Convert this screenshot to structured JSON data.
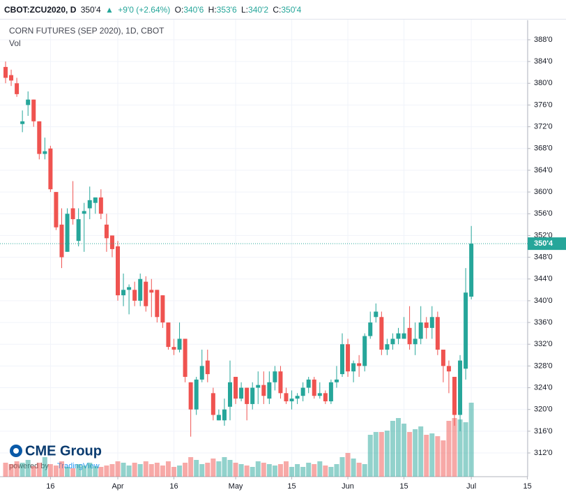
{
  "header": {
    "symbol": "CBOT:ZCU2020, D",
    "last": "350'4",
    "arrow": "▲",
    "change": "+9'0 (+2.64%)",
    "open_label": "O:",
    "open": "340'6",
    "high_label": "H:",
    "high": "353'6",
    "low_label": "L:",
    "low": "340'2",
    "close_label": "C:",
    "close": "350'4"
  },
  "logo": {
    "brand": "CME Group",
    "powered": "powered by",
    "platform": "TradingView"
  },
  "chart_data": {
    "type": "candlestick",
    "title": "CORN FUTURES (SEP 2020), 1D, CBOT",
    "volume_label": "Vol",
    "up_color": "#26a69a",
    "down_color": "#ef5350",
    "grid": true,
    "categories": [
      null,
      null,
      null,
      null,
      null,
      null,
      null,
      null,
      "16",
      null,
      null,
      null,
      null,
      null,
      null,
      null,
      null,
      null,
      null,
      null,
      "Apr",
      null,
      null,
      null,
      null,
      null,
      null,
      null,
      null,
      null,
      "16",
      null,
      null,
      null,
      null,
      null,
      null,
      null,
      null,
      null,
      null,
      "May",
      null,
      null,
      null,
      null,
      null,
      null,
      null,
      null,
      null,
      "15",
      null,
      null,
      null,
      null,
      null,
      null,
      null,
      null,
      null,
      "Jun",
      null,
      null,
      null,
      null,
      null,
      null,
      null,
      null,
      null,
      "15",
      null,
      null,
      null,
      null,
      null,
      null,
      null,
      null,
      null,
      null,
      null,
      "Jul",
      null,
      null,
      null,
      null,
      null,
      null,
      null,
      null,
      null,
      "15"
    ],
    "open": [
      383,
      381.5,
      380,
      372.5,
      376,
      377,
      373,
      367,
      368,
      360,
      354,
      349,
      357,
      351,
      356,
      357,
      358,
      359,
      354,
      352,
      350,
      341,
      342,
      342,
      340,
      343.5,
      342,
      342,
      341,
      336,
      331.5,
      331,
      333,
      325,
      320,
      325.5,
      329,
      323,
      318,
      318,
      320.5,
      326,
      322,
      324,
      321,
      324,
      324.5,
      322,
      325,
      327,
      323,
      321.5,
      322,
      322.5,
      324,
      325.5,
      322.5,
      323,
      321.5,
      325,
      326.5,
      332,
      327,
      328.5,
      328,
      333.5,
      337,
      337,
      331,
      332,
      333,
      333,
      335,
      332,
      333,
      336,
      335,
      337,
      331,
      328,
      326,
      319,
      327.5,
      340.75,
      null,
      null,
      null,
      null,
      null,
      null,
      null,
      null,
      null,
      null
    ],
    "high": [
      384,
      382.5,
      381,
      375,
      378.5,
      377,
      373,
      370,
      368.5,
      360,
      357,
      357,
      362,
      357,
      358,
      361,
      359,
      360.5,
      356,
      352,
      351,
      345,
      343,
      343.5,
      345,
      344.5,
      344,
      342,
      341,
      336,
      333,
      336,
      333,
      325,
      326,
      331,
      331,
      324,
      320,
      322,
      329,
      326,
      325,
      324,
      325,
      327,
      327,
      327,
      328,
      328,
      324,
      323.5,
      323,
      325,
      326,
      326,
      325,
      323.5,
      325.5,
      328,
      334,
      333,
      329,
      330,
      334,
      338,
      339.5,
      338,
      333,
      334,
      335,
      337,
      339,
      336,
      339,
      337,
      339,
      338,
      331,
      329,
      326,
      330,
      346,
      353.75,
      null,
      null,
      null,
      null,
      null,
      null,
      null,
      null,
      null,
      null
    ],
    "low": [
      380,
      379.5,
      377.5,
      371,
      374,
      372,
      366,
      366,
      360,
      353,
      346,
      349,
      354,
      350,
      349,
      355,
      356,
      355,
      349,
      348,
      340,
      339,
      337.5,
      339,
      339,
      338,
      337,
      336,
      335,
      331,
      330,
      330.5,
      325,
      315,
      319,
      325,
      325,
      318,
      318,
      317,
      318,
      321,
      321.5,
      318,
      320,
      321,
      321,
      321,
      323.5,
      322,
      321,
      320,
      321,
      321.5,
      323,
      322,
      322,
      321,
      321,
      324,
      326,
      326,
      325,
      326,
      327,
      333,
      336,
      330,
      330,
      331,
      332,
      333,
      331,
      330,
      332,
      333,
      333,
      330,
      325,
      323,
      317,
      316,
      325.5,
      340.25,
      null,
      null,
      null,
      null,
      null,
      null,
      null,
      null,
      null,
      null
    ],
    "close": [
      381,
      380.5,
      378,
      373,
      377,
      373,
      367,
      367.5,
      360.5,
      353.5,
      348,
      356,
      355,
      355,
      356.5,
      358.5,
      359,
      356,
      351.5,
      349.5,
      341,
      342,
      342.5,
      340,
      344,
      339,
      341.5,
      337,
      336,
      331.5,
      331,
      333,
      326,
      320,
      325.5,
      328,
      326.5,
      319,
      319,
      320,
      325,
      322,
      324,
      321,
      324,
      324.5,
      322.5,
      325,
      327,
      323,
      321.5,
      322,
      322.5,
      324,
      325.5,
      322.5,
      323,
      321.5,
      325,
      325.5,
      332,
      327,
      328.5,
      328,
      333.5,
      336,
      338,
      331,
      332,
      333,
      334,
      334,
      332,
      333,
      336,
      335,
      337,
      331,
      328,
      327,
      319,
      329,
      341.5,
      350.5,
      null,
      null,
      null,
      null,
      null,
      null,
      null,
      null,
      null,
      null
    ],
    "volume": [
      20,
      18,
      22,
      20,
      24,
      15,
      20,
      28,
      18,
      16,
      22,
      14,
      12,
      18,
      16,
      20,
      15,
      14,
      16,
      18,
      22,
      20,
      16,
      20,
      18,
      22,
      18,
      20,
      16,
      22,
      14,
      16,
      20,
      28,
      24,
      18,
      20,
      26,
      22,
      28,
      24,
      20,
      18,
      16,
      14,
      22,
      20,
      18,
      16,
      18,
      22,
      14,
      18,
      14,
      20,
      18,
      22,
      16,
      14,
      18,
      28,
      34,
      26,
      20,
      18,
      60,
      64,
      64,
      66,
      80,
      84,
      76,
      64,
      68,
      72,
      60,
      62,
      58,
      52,
      80,
      84,
      82,
      78,
      106,
      null,
      null,
      null,
      null,
      null,
      null,
      null,
      null,
      null,
      null
    ],
    "ylim": [
      307.64,
      391.72
    ],
    "yticks": [
      {
        "value": 312,
        "label": "312'0"
      },
      {
        "value": 316,
        "label": "316'0"
      },
      {
        "value": 320,
        "label": "320'0"
      },
      {
        "value": 324,
        "label": "324'0"
      },
      {
        "value": 328,
        "label": "328'0"
      },
      {
        "value": 332,
        "label": "332'0"
      },
      {
        "value": 336,
        "label": "336'0"
      },
      {
        "value": 340,
        "label": "340'0"
      },
      {
        "value": 344,
        "label": "344'0"
      },
      {
        "value": 348,
        "label": "348'0"
      },
      {
        "value": 352,
        "label": "352'0"
      },
      {
        "value": 356,
        "label": "356'0"
      },
      {
        "value": 360,
        "label": "360'0"
      },
      {
        "value": 364,
        "label": "364'0"
      },
      {
        "value": 368,
        "label": "368'0"
      },
      {
        "value": 372,
        "label": "372'0"
      },
      {
        "value": 376,
        "label": "376'0"
      },
      {
        "value": 380,
        "label": "380'0"
      },
      {
        "value": 384,
        "label": "384'0"
      },
      {
        "value": 388,
        "label": "388'0"
      }
    ],
    "last": {
      "value": 350.5,
      "label": "350'4"
    }
  }
}
